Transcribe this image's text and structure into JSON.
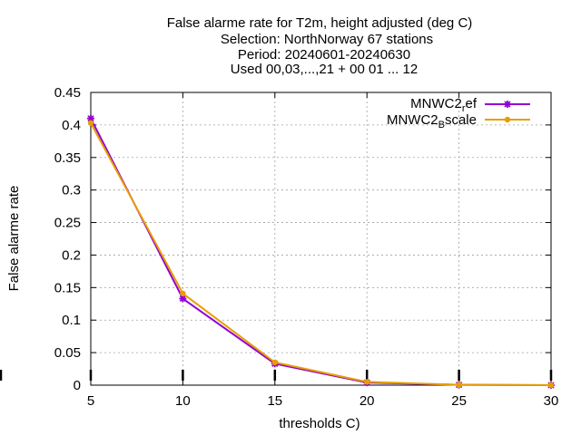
{
  "chart_data": {
    "type": "line",
    "title_lines": [
      "False alarme rate  for T2m, height adjusted (deg C)",
      "Selection: NorthNorway      67 stations",
      "Period: 20240601-20240630",
      "Used 00,03,...,21 + 00 01 ... 12"
    ],
    "xlabel": "thresholds C)",
    "ylabel": "False alarme rate",
    "xlim": [
      5,
      30
    ],
    "ylim": [
      0,
      0.45
    ],
    "x_ticks": [
      "5",
      "10",
      "15",
      "20",
      "25",
      "30"
    ],
    "y_ticks": [
      "0",
      "0.05",
      "0.1",
      "0.15",
      "0.2",
      "0.25",
      "0.3",
      "0.35",
      "0.4",
      "0.45"
    ],
    "grid": true,
    "legend_position": "top-right",
    "x": [
      5,
      10,
      15,
      20,
      25,
      30
    ],
    "series": [
      {
        "legend_base": "MNWC2",
        "legend_sub": "r",
        "legend_rest": "ef",
        "color": "#9400d3",
        "marker": "star",
        "values": [
          0.41,
          0.133,
          0.033,
          0.004,
          0.0005,
          0.0
        ]
      },
      {
        "legend_base": "MNWC2",
        "legend_sub": "B",
        "legend_rest": "scale",
        "color": "#e69f00",
        "marker": "circle",
        "values": [
          0.403,
          0.141,
          0.035,
          0.005,
          0.0006,
          0.0
        ]
      }
    ]
  }
}
